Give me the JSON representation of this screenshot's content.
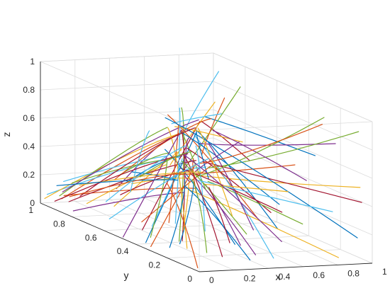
{
  "chart_data": {
    "type": "line3d",
    "title": "",
    "xlabel": "x",
    "ylabel": "y",
    "zlabel": "z",
    "xlim": [
      0,
      1
    ],
    "ylim": [
      0,
      1
    ],
    "zlim": [
      0,
      1
    ],
    "x_ticks": [
      "0",
      "0.2",
      "0.4",
      "0.6",
      "0.8",
      "1"
    ],
    "y_ticks": [
      "0",
      "0.2",
      "0.4",
      "0.6",
      "0.8",
      "1"
    ],
    "z_ticks": [
      "0",
      "0.2",
      "0.4",
      "0.6",
      "0.8",
      "1"
    ],
    "grid": true,
    "box": "full",
    "view": "isometric 3-D, y axis front-left, x axis front-right",
    "series_colors": [
      "#0072BD",
      "#D95319",
      "#EDB120",
      "#7E2F8E",
      "#77AC30",
      "#4DBEEE",
      "#A2142F"
    ],
    "trajectories": {
      "count": 90,
      "attractor": [
        0.55,
        0.7,
        0.45
      ],
      "description": "family of flow trajectories starting across the unit cube and converging toward a central curve"
    }
  }
}
